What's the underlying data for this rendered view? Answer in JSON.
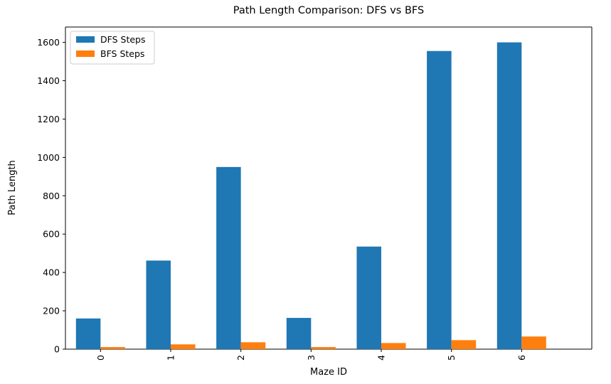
{
  "chart_data": {
    "type": "bar",
    "title": "Path Length Comparison: DFS vs BFS",
    "xlabel": "Maze ID",
    "ylabel": "Path Length",
    "categories": [
      "0",
      "1",
      "2",
      "3",
      "4",
      "5",
      "6"
    ],
    "series": [
      {
        "name": "DFS Steps",
        "color": "#1f77b4",
        "values": [
          160,
          462,
          950,
          163,
          535,
          1555,
          1600
        ]
      },
      {
        "name": "BFS Steps",
        "color": "#ff7f0e",
        "values": [
          11,
          25,
          36,
          11,
          32,
          47,
          66
        ]
      }
    ],
    "ylim": [
      0,
      1680
    ],
    "yticks": [
      0,
      200,
      400,
      600,
      800,
      1000,
      1200,
      1400,
      1600
    ],
    "xtick_rotation": 90,
    "grid": false,
    "legend_position": "top-left"
  }
}
